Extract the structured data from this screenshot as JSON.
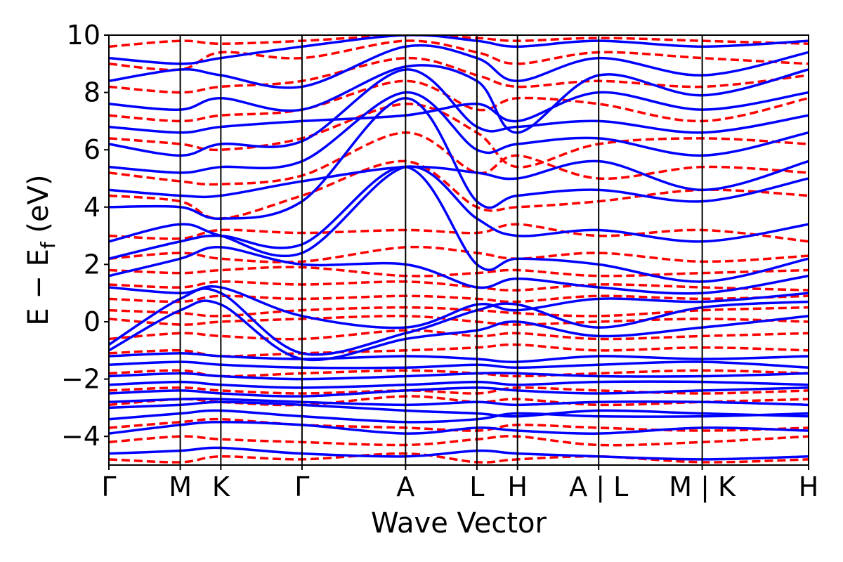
{
  "chart_data": {
    "type": "line",
    "xlabel": "Wave Vector",
    "ylabel_parts": {
      "main": "E − E",
      "sub": "f",
      "unit": " (eV)"
    },
    "ylim": [
      -5,
      10
    ],
    "yticks": [
      -4,
      -2,
      0,
      2,
      4,
      6,
      8,
      10
    ],
    "ytick_labels": [
      "−4",
      "−2",
      "0",
      "2",
      "4",
      "6",
      "8",
      "10"
    ],
    "xlim": [
      0,
      10
    ],
    "kpoints": [
      {
        "label": "Γ",
        "x": 0.0
      },
      {
        "label": "M",
        "x": 1.02
      },
      {
        "label": "K",
        "x": 1.6
      },
      {
        "label": "Γ",
        "x": 2.76
      },
      {
        "label": "A",
        "x": 4.24
      },
      {
        "label": "L",
        "x": 5.26
      },
      {
        "label": "H",
        "x": 5.84
      },
      {
        "label": "A | L",
        "x": 7.0
      },
      {
        "label": "M | K",
        "x": 8.48
      },
      {
        "label": "H",
        "x": 10.0
      }
    ],
    "grid": false,
    "series": [
      {
        "style": "solid",
        "color": "#0000ff",
        "values_note": "band"
      },
      {
        "style": "dashed",
        "color": "#ff0000",
        "values_note": "band"
      }
    ],
    "bands_solid": [
      [
        -4.6,
        -4.5,
        -4.4,
        -4.6,
        -4.7,
        -4.5,
        -4.6,
        -4.7,
        -4.8,
        -4.7
      ],
      [
        -3.9,
        -3.6,
        -3.5,
        -3.6,
        -3.9,
        -3.7,
        -3.8,
        -3.9,
        -3.7,
        -3.8
      ],
      [
        -3.4,
        -3.2,
        -3.1,
        -3.3,
        -3.5,
        -3.4,
        -3.2,
        -3.3,
        -3.3,
        -3.2
      ],
      [
        -3.0,
        -2.9,
        -2.8,
        -2.9,
        -3.1,
        -3.2,
        -3.3,
        -3.1,
        -3.2,
        -3.3
      ],
      [
        -2.8,
        -2.7,
        -2.7,
        -2.8,
        -2.9,
        -2.8,
        -2.9,
        -2.8,
        -2.8,
        -2.9
      ],
      [
        -2.5,
        -2.4,
        -2.5,
        -2.6,
        -2.4,
        -2.3,
        -2.4,
        -2.5,
        -2.4,
        -2.3
      ],
      [
        -2.2,
        -2.1,
        -2.2,
        -2.3,
        -2.2,
        -2.1,
        -2.2,
        -2.1,
        -2.1,
        -2.2
      ],
      [
        -1.9,
        -1.8,
        -1.9,
        -2.0,
        -1.9,
        -1.8,
        -1.8,
        -1.9,
        -1.9,
        -1.8
      ],
      [
        -1.5,
        -1.4,
        -1.5,
        -1.6,
        -1.6,
        -1.5,
        -1.6,
        -1.5,
        -1.4,
        -1.6
      ],
      [
        -1.2,
        -1.1,
        -1.2,
        -1.3,
        -1.2,
        -1.3,
        -1.4,
        -1.2,
        -1.3,
        -1.2
      ],
      [
        -1.0,
        0.4,
        0.6,
        -1.3,
        -0.6,
        -0.3,
        0.0,
        -0.5,
        -0.2,
        0.2
      ],
      [
        -0.8,
        0.8,
        1.0,
        -1.1,
        -0.4,
        0.4,
        0.6,
        -0.2,
        0.5,
        0.7
      ],
      [
        1.2,
        1.0,
        1.2,
        0.2,
        -0.2,
        0.6,
        0.4,
        0.8,
        0.7,
        1.0
      ],
      [
        1.6,
        2.2,
        2.6,
        2.0,
        2.0,
        1.2,
        1.5,
        1.2,
        1.0,
        1.6
      ],
      [
        2.2,
        2.8,
        3.0,
        2.7,
        5.4,
        2.0,
        2.2,
        2.0,
        1.4,
        2.2
      ],
      [
        2.8,
        3.4,
        3.0,
        2.4,
        5.4,
        3.6,
        3.0,
        3.2,
        2.8,
        3.4
      ],
      [
        4.0,
        4.0,
        3.6,
        4.2,
        7.8,
        4.2,
        4.4,
        4.6,
        4.2,
        5.0
      ],
      [
        4.6,
        4.4,
        4.4,
        4.9,
        5.4,
        5.2,
        5.0,
        5.6,
        4.6,
        5.6
      ],
      [
        5.4,
        5.2,
        5.4,
        5.6,
        8.0,
        6.0,
        6.2,
        6.4,
        5.8,
        6.6
      ],
      [
        6.2,
        5.8,
        6.2,
        6.3,
        8.8,
        6.8,
        6.8,
        7.0,
        6.6,
        7.2
      ],
      [
        6.8,
        6.6,
        6.8,
        7.0,
        7.2,
        7.6,
        7.0,
        8.0,
        7.4,
        8.0
      ],
      [
        7.6,
        7.4,
        7.8,
        7.4,
        8.9,
        8.4,
        6.6,
        8.6,
        7.9,
        8.8
      ],
      [
        8.4,
        8.8,
        8.6,
        8.2,
        9.6,
        9.2,
        8.4,
        9.2,
        8.6,
        9.4
      ],
      [
        9.2,
        9.0,
        9.2,
        9.6,
        10.0,
        9.8,
        9.6,
        9.8,
        9.6,
        9.8
      ]
    ],
    "bands_dashed": [
      [
        -4.8,
        -4.9,
        -4.7,
        -4.8,
        -4.6,
        -4.9,
        -4.8,
        -4.7,
        -4.9,
        -4.8
      ],
      [
        -4.2,
        -4.0,
        -4.1,
        -4.2,
        -4.3,
        -4.1,
        -4.0,
        -4.3,
        -4.2,
        -4.0
      ],
      [
        -3.7,
        -3.5,
        -3.4,
        -3.6,
        -3.7,
        -3.8,
        -3.6,
        -3.7,
        -3.8,
        -3.7
      ],
      [
        -2.9,
        -2.7,
        -2.8,
        -2.9,
        -2.6,
        -2.8,
        -2.7,
        -2.9,
        -2.8,
        -2.7
      ],
      [
        -2.4,
        -2.3,
        -2.4,
        -2.5,
        -2.4,
        -2.5,
        -2.3,
        -2.4,
        -2.5,
        -2.4
      ],
      [
        -1.8,
        -1.7,
        -1.9,
        -1.8,
        -1.7,
        -1.8,
        -1.9,
        -1.8,
        -1.7,
        -1.8
      ],
      [
        -1.1,
        -1.0,
        -1.2,
        -1.1,
        -1.0,
        -0.9,
        -0.8,
        -1.0,
        -0.9,
        -1.0
      ],
      [
        -0.6,
        -0.4,
        -0.5,
        -0.6,
        -0.3,
        -0.5,
        -0.4,
        -0.6,
        -0.5,
        -0.4
      ],
      [
        0.1,
        -0.1,
        0.0,
        0.1,
        0.2,
        0.0,
        -0.1,
        0.0,
        0.1,
        0.0
      ],
      [
        0.4,
        0.3,
        0.2,
        0.4,
        0.5,
        0.4,
        0.3,
        0.2,
        0.4,
        0.5
      ],
      [
        0.8,
        0.7,
        0.9,
        0.8,
        0.9,
        0.8,
        0.7,
        0.9,
        0.8,
        0.9
      ],
      [
        1.3,
        1.2,
        1.4,
        1.3,
        1.4,
        1.2,
        1.1,
        1.3,
        1.2,
        1.1
      ],
      [
        1.8,
        1.7,
        1.8,
        1.9,
        1.6,
        1.7,
        1.8,
        1.6,
        1.7,
        1.8
      ],
      [
        2.2,
        2.4,
        2.2,
        2.1,
        2.6,
        2.4,
        2.2,
        2.4,
        2.1,
        2.3
      ],
      [
        3.0,
        2.9,
        3.2,
        3.1,
        3.2,
        3.1,
        3.4,
        3.0,
        3.2,
        2.8
      ],
      [
        4.4,
        4.2,
        3.6,
        4.4,
        5.6,
        4.0,
        4.0,
        4.2,
        4.6,
        4.4
      ],
      [
        5.2,
        4.9,
        4.8,
        5.1,
        6.6,
        5.2,
        5.8,
        5.0,
        5.4,
        5.2
      ],
      [
        6.4,
        6.2,
        6.0,
        6.4,
        7.6,
        6.6,
        5.4,
        6.2,
        6.4,
        6.2
      ],
      [
        7.2,
        7.0,
        7.2,
        7.4,
        8.4,
        7.4,
        7.8,
        7.6,
        7.0,
        7.8
      ],
      [
        8.2,
        8.0,
        8.2,
        8.4,
        9.2,
        8.6,
        8.2,
        8.4,
        8.2,
        8.6
      ],
      [
        9.0,
        8.8,
        9.4,
        9.2,
        9.8,
        9.4,
        9.0,
        9.4,
        9.2,
        9.0
      ],
      [
        9.6,
        9.8,
        9.7,
        9.8,
        10.0,
        9.9,
        9.8,
        9.9,
        9.8,
        9.7
      ]
    ]
  }
}
